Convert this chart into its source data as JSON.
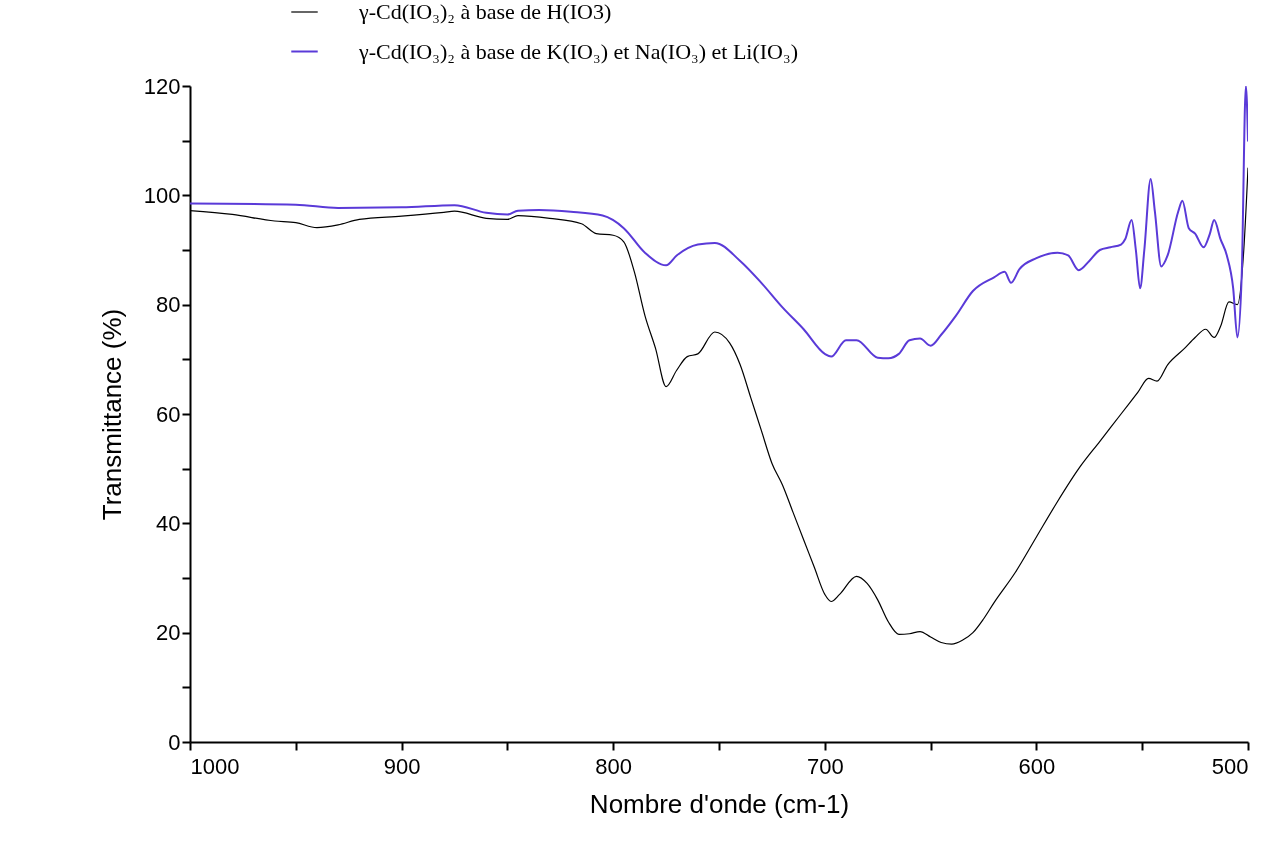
{
  "chart_data": {
    "type": "line",
    "xlabel": "Nombre d'onde (cm-1)",
    "ylabel": "Transmittance (%)",
    "xlim": [
      1000,
      500
    ],
    "xticks": [
      1000,
      {
        "value": 950,
        "label": null
      },
      900,
      {
        "value": 850,
        "label": null
      },
      800,
      {
        "value": 750,
        "label": null
      },
      700,
      {
        "value": 650,
        "label": null
      },
      600,
      {
        "value": 550,
        "label": null
      },
      500
    ],
    "ylim": [
      0,
      120
    ],
    "yticks": [
      0,
      {
        "value": 10,
        "label": null
      },
      20,
      {
        "value": 30,
        "label": null
      },
      40,
      {
        "value": 50,
        "label": null
      },
      60,
      {
        "value": 70,
        "label": null
      },
      80,
      {
        "value": 90,
        "label": null
      },
      100,
      {
        "value": 110,
        "label": null
      },
      120
    ],
    "grid": false,
    "legend": "top",
    "marker": "none",
    "line_style": "solid",
    "series": [
      {
        "name": "γ-Cd(IO₃)₂ à base de H(IO3)",
        "color": "#000000",
        "x": [
          1000,
          980,
          960,
          950,
          940,
          930,
          920,
          900,
          880,
          875,
          860,
          850,
          845,
          830,
          815,
          808,
          800,
          795,
          790,
          785,
          780,
          775,
          770,
          765,
          760,
          752,
          745,
          740,
          735,
          730,
          725,
          720,
          715,
          710,
          705,
          700,
          697,
          693,
          685,
          680,
          675,
          670,
          665,
          660,
          655,
          650,
          645,
          640,
          635,
          630,
          625,
          620,
          610,
          600,
          590,
          580,
          570,
          560,
          552,
          547,
          543,
          538,
          530,
          525,
          520,
          516,
          513,
          509,
          505,
          502,
          500
        ],
        "values": [
          97.2,
          96.5,
          95.3,
          95,
          94.1,
          94.6,
          95.6,
          96.2,
          96.9,
          97.1,
          95.8,
          95.6,
          96.3,
          95.8,
          94.8,
          93,
          92.7,
          91.5,
          86,
          78,
          72,
          65,
          68,
          70.5,
          71,
          75,
          73,
          69,
          63,
          57,
          51,
          47,
          42,
          37,
          32,
          27,
          25.7,
          27,
          30.3,
          29,
          26,
          22,
          19.7,
          19.8,
          20.2,
          19.2,
          18.2,
          17.9,
          18.6,
          20,
          22.5,
          25.5,
          31,
          37.5,
          44,
          50,
          55,
          60,
          64,
          66.5,
          66,
          69,
          72,
          74,
          75.5,
          74,
          76,
          80.5,
          80,
          90,
          105
        ]
      },
      {
        "name": "γ-Cd(IO₃)₂ à base de K(IO₃) et Na(IO₃) et Li(IO₃)",
        "color": "#5a3ad8",
        "x": [
          1000,
          950,
          930,
          900,
          875,
          860,
          850,
          845,
          835,
          820,
          805,
          795,
          785,
          775,
          770,
          760,
          752,
          740,
          730,
          720,
          710,
          700,
          697,
          690,
          685,
          675,
          670,
          665,
          660,
          655,
          650,
          645,
          638,
          630,
          620,
          615,
          612,
          608,
          600,
          590,
          585,
          580,
          575,
          570,
          565,
          560,
          558,
          555,
          553,
          551,
          549,
          546,
          544,
          541,
          538,
          533,
          531,
          528,
          525,
          521,
          518,
          516,
          513,
          510,
          507,
          505,
          503,
          501,
          500
        ],
        "values": [
          98.5,
          98.3,
          97.7,
          97.8,
          98.2,
          96.8,
          96.5,
          97.2,
          97.3,
          97,
          96.3,
          94,
          89.5,
          87.2,
          89,
          91,
          91.3,
          88,
          84,
          79.5,
          75.5,
          71,
          70.5,
          73.5,
          73.5,
          70.3,
          70.2,
          71,
          73.5,
          73.8,
          72.5,
          74.5,
          78,
          82.5,
          85,
          86,
          84,
          86.5,
          88.5,
          89.5,
          89,
          86.3,
          88,
          90,
          90.5,
          91,
          92,
          95.5,
          90,
          83,
          90,
          103,
          97,
          87,
          89,
          97,
          99,
          94,
          93,
          90.5,
          93,
          95.5,
          92,
          89,
          83,
          74,
          85,
          120,
          110
        ]
      }
    ]
  }
}
